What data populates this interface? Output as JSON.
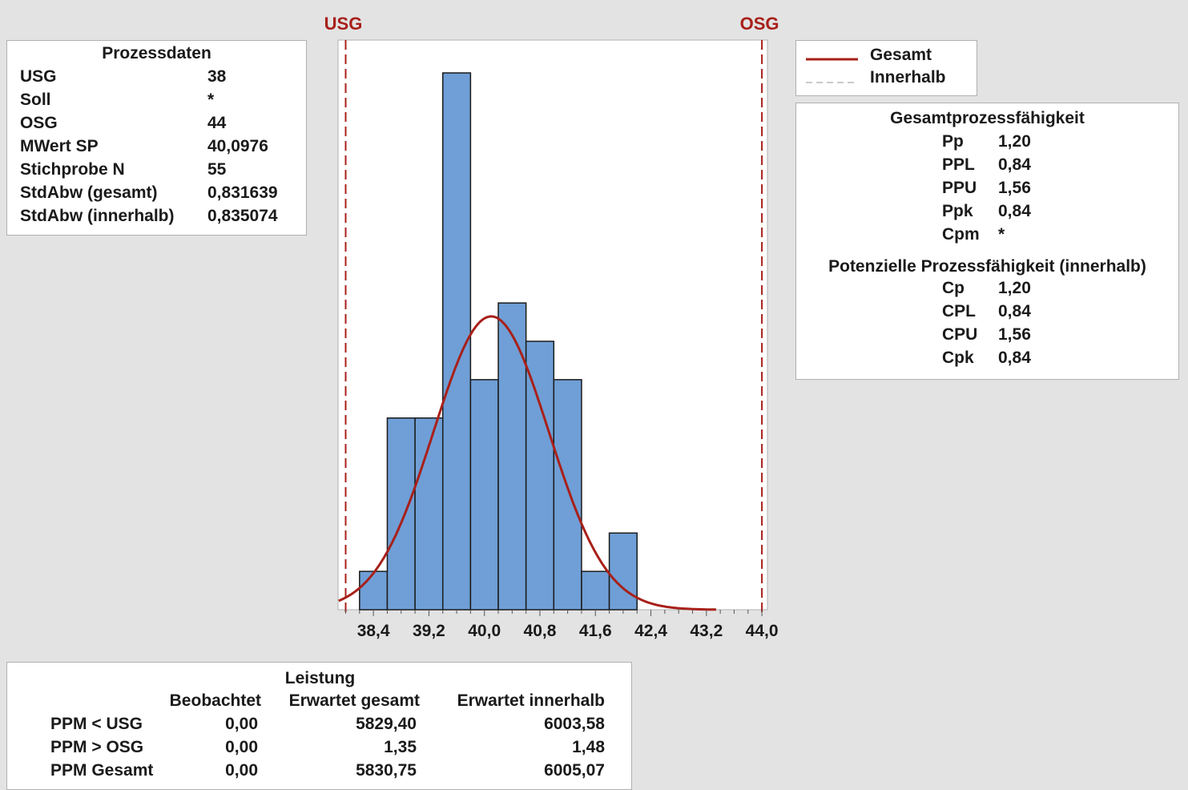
{
  "process_data": {
    "title": "Prozessdaten",
    "rows": [
      {
        "label": "USG",
        "value": "38"
      },
      {
        "label": "Soll",
        "value": "*"
      },
      {
        "label": "OSG",
        "value": "44"
      },
      {
        "label": "MWert SP",
        "value": "40,0976"
      },
      {
        "label": "Stichprobe N",
        "value": "55"
      },
      {
        "label": "StdAbw (gesamt)",
        "value": "0,831639"
      },
      {
        "label": "StdAbw (innerhalb)",
        "value": "0,835074"
      }
    ]
  },
  "legend": {
    "items": [
      {
        "label": "Gesamt",
        "style": "solid"
      },
      {
        "label": "Innerhalb",
        "style": "dashed"
      }
    ]
  },
  "capability": {
    "overall": {
      "title": "Gesamtprozessfähigkeit",
      "rows": [
        {
          "label": "Pp",
          "value": "1,20"
        },
        {
          "label": "PPL",
          "value": "0,84"
        },
        {
          "label": "PPU",
          "value": "1,56"
        },
        {
          "label": "Ppk",
          "value": "0,84"
        },
        {
          "label": "Cpm",
          "value": "*"
        }
      ]
    },
    "potential": {
      "title": "Potenzielle Prozessfähigkeit (innerhalb)",
      "rows": [
        {
          "label": "Cp",
          "value": "1,20"
        },
        {
          "label": "CPL",
          "value": "0,84"
        },
        {
          "label": "CPU",
          "value": "1,56"
        },
        {
          "label": "Cpk",
          "value": "0,84"
        }
      ]
    }
  },
  "performance": {
    "title": "Leistung",
    "headers": [
      "Beobachtet",
      "Erwartet gesamt",
      "Erwartet innerhalb"
    ],
    "rows": [
      {
        "label": "PPM < USG",
        "observed": "0,00",
        "expected_overall": "5829,40",
        "expected_within": "6003,58"
      },
      {
        "label": "PPM > OSG",
        "observed": "0,00",
        "expected_overall": "1,35",
        "expected_within": "1,48"
      },
      {
        "label": "PPM Gesamt",
        "observed": "0,00",
        "expected_overall": "5830,75",
        "expected_within": "6005,07"
      }
    ]
  },
  "colors": {
    "bar_fill": "#6f9fd6",
    "bar_stroke": "#1a1a1a",
    "curve": "#a8201a",
    "spec_line": "#a8201a",
    "background": "#e3e3e3"
  },
  "chart_data": {
    "type": "bar",
    "subtype": "histogram",
    "bins": [
      {
        "start": 38.2,
        "end": 38.6,
        "count": 1
      },
      {
        "start": 38.6,
        "end": 39.0,
        "count": 5
      },
      {
        "start": 39.0,
        "end": 39.4,
        "count": 5
      },
      {
        "start": 39.4,
        "end": 39.8,
        "count": 14
      },
      {
        "start": 39.8,
        "end": 40.2,
        "count": 6
      },
      {
        "start": 40.2,
        "end": 40.6,
        "count": 8
      },
      {
        "start": 40.6,
        "end": 41.0,
        "count": 7
      },
      {
        "start": 41.0,
        "end": 41.4,
        "count": 6
      },
      {
        "start": 41.4,
        "end": 41.8,
        "count": 1
      },
      {
        "start": 41.8,
        "end": 42.2,
        "count": 2
      }
    ],
    "x_ticks": [
      "38,4",
      "39,2",
      "40,0",
      "40,8",
      "41,6",
      "42,4",
      "43,2",
      "44,0"
    ],
    "x_tick_values": [
      38.4,
      39.2,
      40.0,
      40.8,
      41.6,
      42.4,
      43.2,
      44.0
    ],
    "xlim": [
      38.0,
      44.1
    ],
    "ylim": [
      0,
      14
    ],
    "normal_curves": [
      {
        "name": "Gesamt",
        "mean": 40.0976,
        "sd": 0.831639,
        "style": "solid"
      },
      {
        "name": "Innerhalb",
        "mean": 40.0976,
        "sd": 0.835074,
        "style": "dashed"
      }
    ],
    "spec_limits": [
      {
        "label": "USG",
        "value": 38
      },
      {
        "label": "OSG",
        "value": 44
      }
    ],
    "title": "",
    "xlabel": "",
    "ylabel": "",
    "grid": false,
    "legend": "top-right"
  }
}
